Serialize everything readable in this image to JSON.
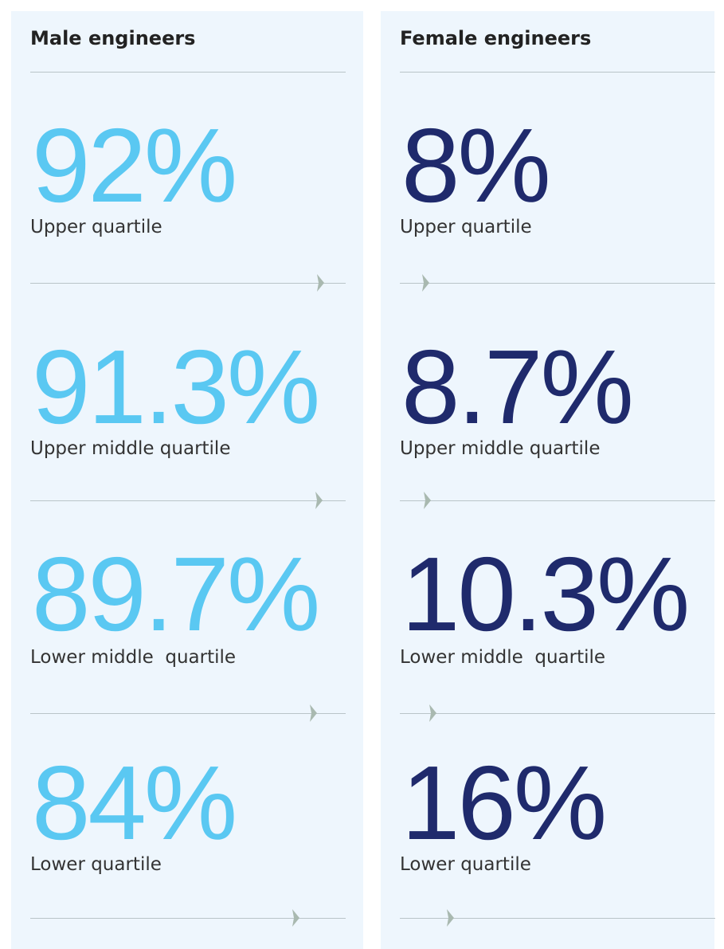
{
  "panels": [
    {
      "title": "Male engineers",
      "color": "#5ac8f2",
      "items": [
        {
          "value": 92,
          "label": "92%",
          "caption": "Upper quartile"
        },
        {
          "value": 91.3,
          "label": "91.3%",
          "caption": "Upper middle quartile"
        },
        {
          "value": 89.7,
          "label": "89.7%",
          "caption": "Lower middle  quartile"
        },
        {
          "value": 84,
          "label": "84%",
          "caption": "Lower quartile"
        }
      ]
    },
    {
      "title": "Female engineers",
      "color": "#1f2a6c",
      "items": [
        {
          "value": 8,
          "label": "8%",
          "caption": "Upper quartile"
        },
        {
          "value": 8.7,
          "label": "8.7%",
          "caption": "Upper middle quartile"
        },
        {
          "value": 10.3,
          "label": "10.3%",
          "caption": "Lower middle  quartile"
        },
        {
          "value": 16,
          "label": "16%",
          "caption": "Lower quartile"
        }
      ]
    }
  ]
}
